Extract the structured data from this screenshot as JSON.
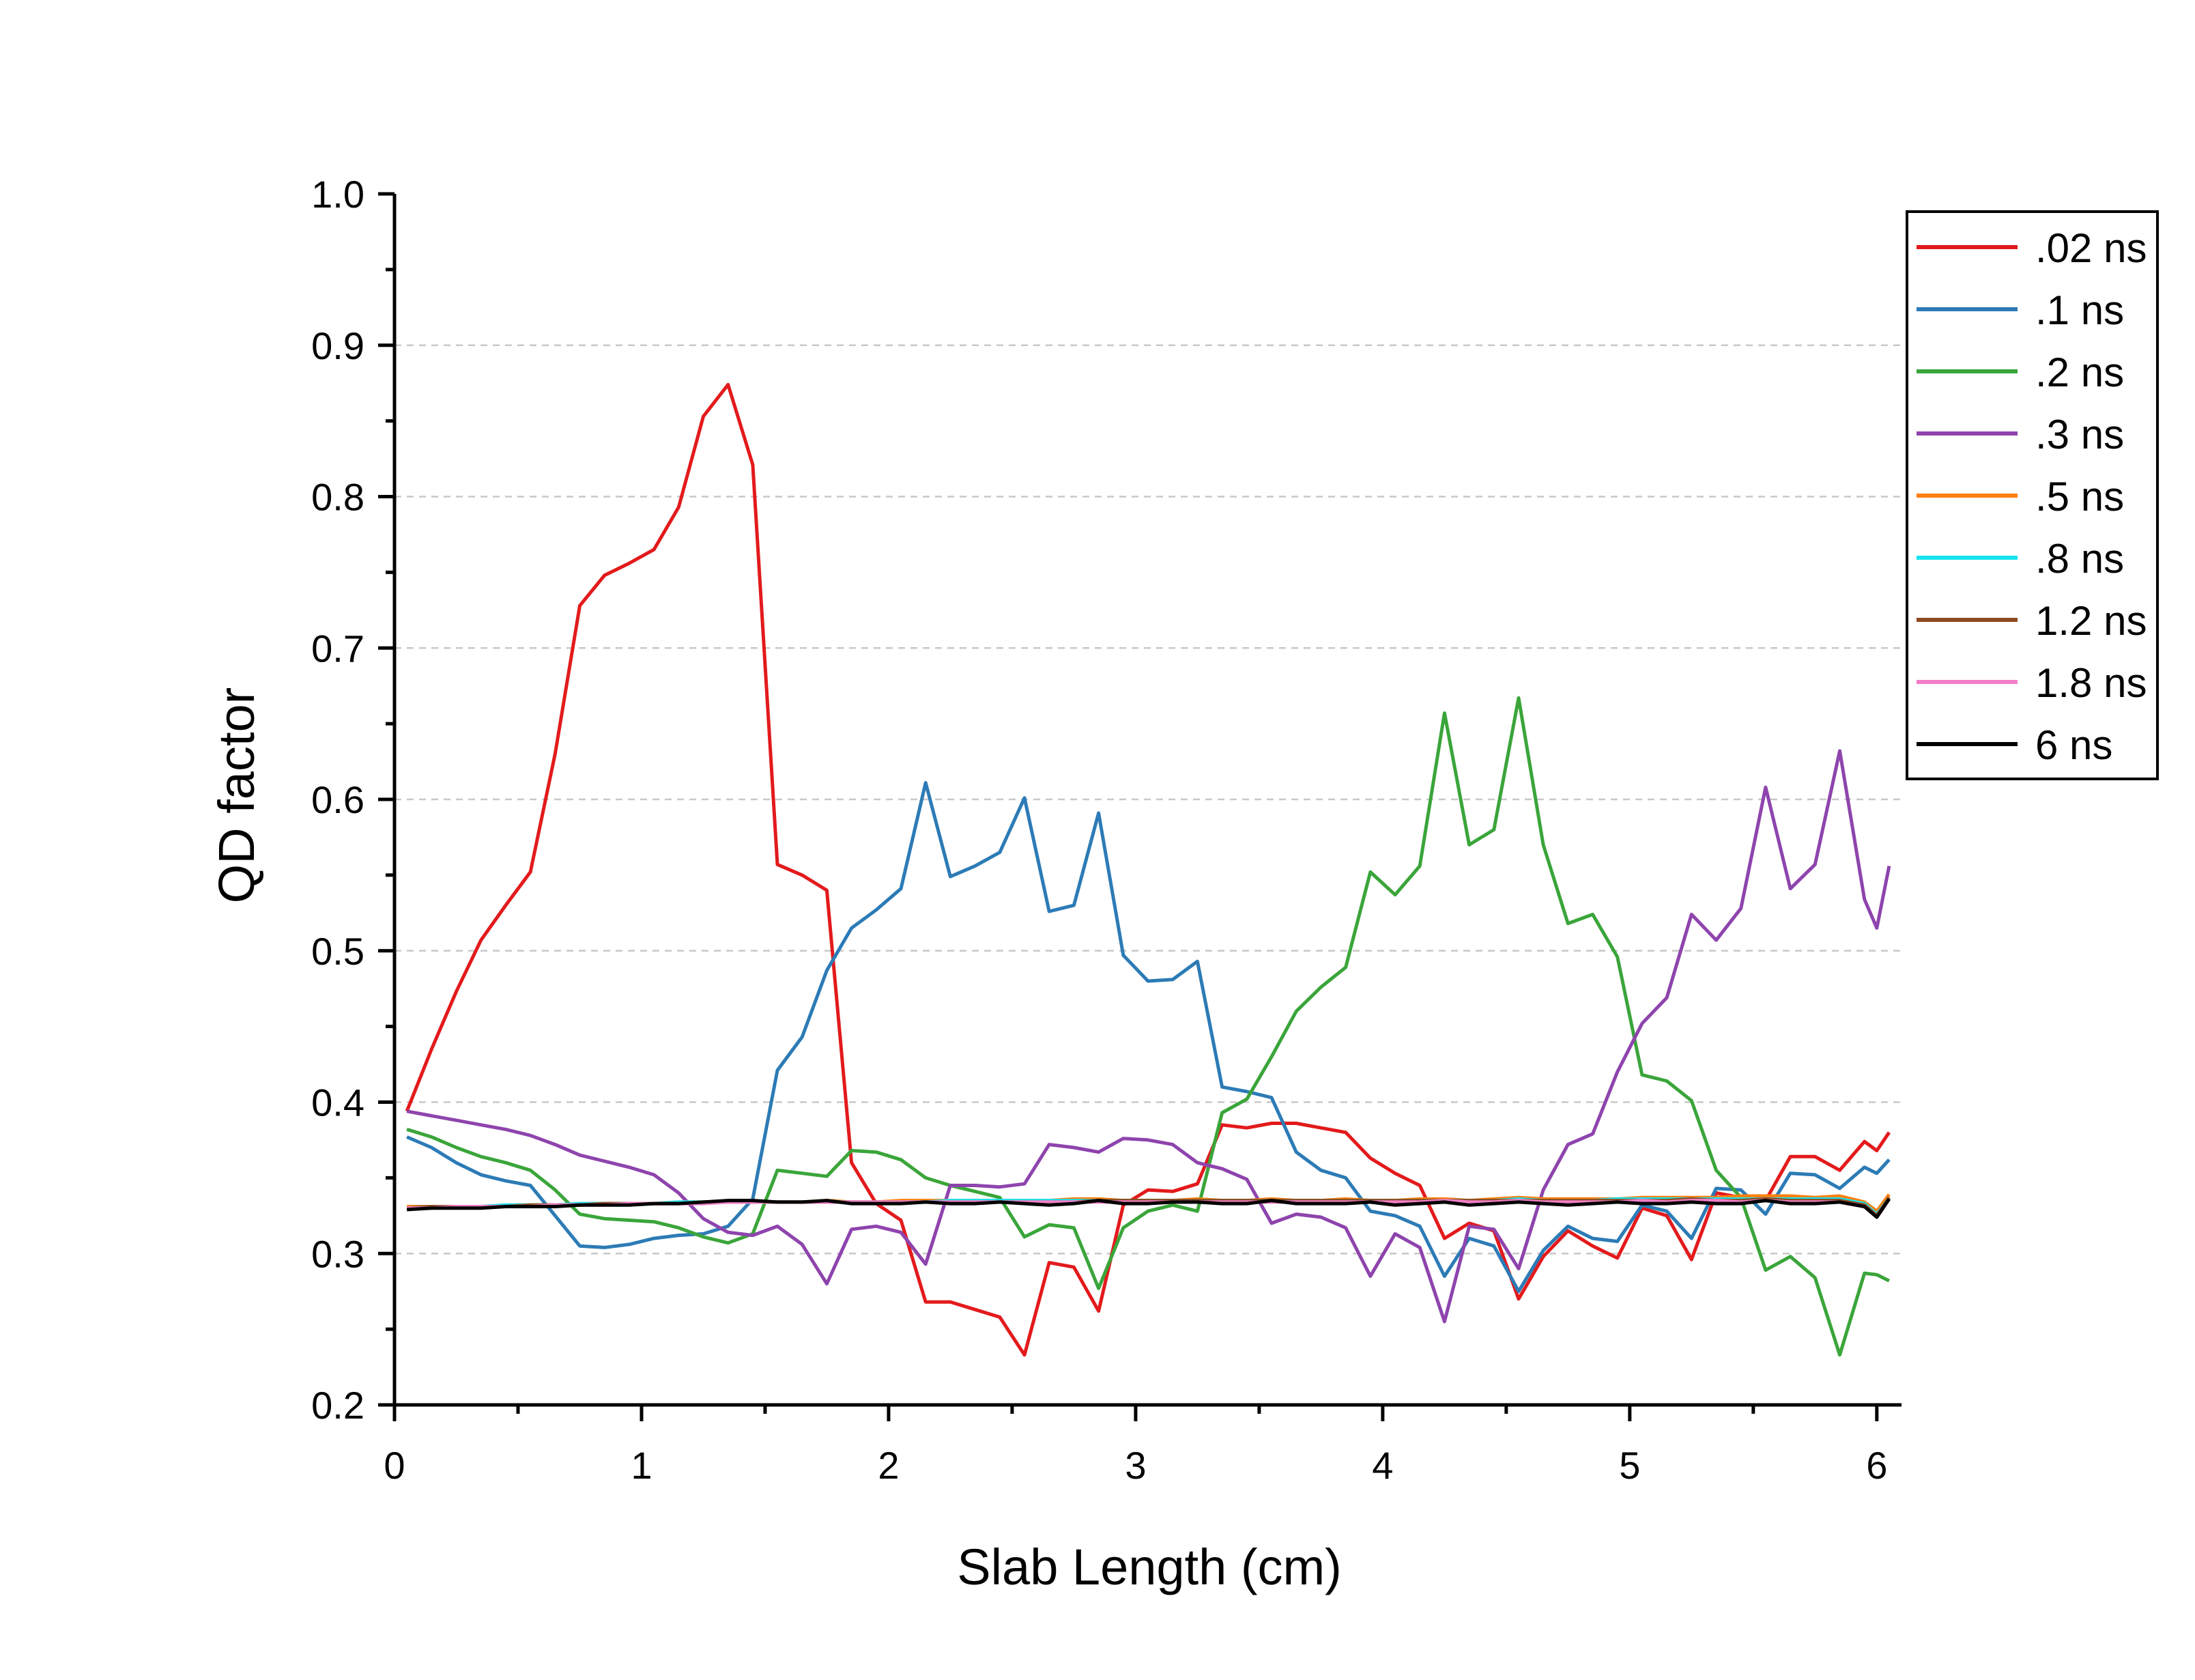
{
  "chart_data": {
    "type": "line",
    "title": "",
    "xlabel": "Slab Length (cm)",
    "ylabel": "QD factor",
    "xlim": [
      0,
      6.1
    ],
    "ylim": [
      0.2,
      1.0
    ],
    "x_ticks": [
      "0",
      "1",
      "2",
      "3",
      "4",
      "5",
      "6"
    ],
    "y_ticks": [
      "0.2",
      "0.3",
      "0.4",
      "0.5",
      "0.6",
      "0.7",
      "0.8",
      "0.9",
      "1.0"
    ],
    "grid": "horizontal dashed",
    "legend_position": "top-right",
    "x": [
      0.05,
      0.15,
      0.25,
      0.35,
      0.45,
      0.55,
      0.65,
      0.75,
      0.85,
      0.95,
      1.05,
      1.15,
      1.25,
      1.35,
      1.45,
      1.55,
      1.65,
      1.75,
      1.85,
      1.95,
      2.05,
      2.15,
      2.25,
      2.35,
      2.45,
      2.55,
      2.65,
      2.75,
      2.85,
      2.95,
      3.05,
      3.15,
      3.25,
      3.35,
      3.45,
      3.55,
      3.65,
      3.75,
      3.85,
      3.95,
      4.05,
      4.15,
      4.25,
      4.35,
      4.45,
      4.55,
      4.65,
      4.75,
      4.85,
      4.95,
      5.05,
      5.15,
      5.25,
      5.35,
      5.45,
      5.55,
      5.65,
      5.75,
      5.85,
      5.95,
      6.0,
      6.05
    ],
    "series": [
      {
        "name": ".02 ns",
        "color": "#e31a1c",
        "values": [
          0.394,
          0.435,
          0.473,
          0.507,
          0.53,
          0.552,
          0.63,
          0.728,
          0.748,
          0.756,
          0.765,
          0.793,
          0.853,
          0.874,
          0.821,
          0.557,
          0.55,
          0.54,
          0.36,
          0.333,
          0.322,
          0.268,
          0.268,
          0.263,
          0.258,
          0.233,
          0.294,
          0.291,
          0.262,
          0.332,
          0.342,
          0.341,
          0.346,
          0.385,
          0.383,
          0.386,
          0.386,
          0.383,
          0.38,
          0.363,
          0.353,
          0.345,
          0.31,
          0.32,
          0.315,
          0.27,
          0.298,
          0.315,
          0.305,
          0.297,
          0.33,
          0.325,
          0.296,
          0.34,
          0.337,
          0.335,
          0.364,
          0.364,
          0.355,
          0.374,
          0.368,
          0.38
        ]
      },
      {
        "name": ".1 ns",
        "color": "#2c7bb6",
        "values": [
          0.377,
          0.37,
          0.36,
          0.352,
          0.348,
          0.345,
          0.325,
          0.305,
          0.304,
          0.306,
          0.31,
          0.312,
          0.313,
          0.318,
          0.336,
          0.421,
          0.443,
          0.487,
          0.515,
          0.527,
          0.541,
          0.611,
          0.549,
          0.556,
          0.565,
          0.601,
          0.526,
          0.53,
          0.591,
          0.497,
          0.48,
          0.481,
          0.493,
          0.41,
          0.407,
          0.403,
          0.367,
          0.355,
          0.35,
          0.328,
          0.325,
          0.318,
          0.285,
          0.31,
          0.305,
          0.275,
          0.302,
          0.318,
          0.31,
          0.308,
          0.332,
          0.328,
          0.31,
          0.343,
          0.342,
          0.326,
          0.353,
          0.352,
          0.343,
          0.357,
          0.353,
          0.362
        ]
      },
      {
        "name": ".2 ns",
        "color": "#3aa53a",
        "values": [
          0.382,
          0.377,
          0.37,
          0.364,
          0.36,
          0.355,
          0.342,
          0.326,
          0.323,
          0.322,
          0.321,
          0.317,
          0.311,
          0.307,
          0.313,
          0.355,
          0.353,
          0.351,
          0.368,
          0.367,
          0.362,
          0.35,
          0.345,
          0.341,
          0.337,
          0.311,
          0.319,
          0.317,
          0.277,
          0.317,
          0.328,
          0.332,
          0.328,
          0.393,
          0.402,
          0.43,
          0.46,
          0.476,
          0.489,
          0.552,
          0.537,
          0.556,
          0.657,
          0.57,
          0.58,
          0.667,
          0.57,
          0.518,
          0.524,
          0.496,
          0.418,
          0.414,
          0.401,
          0.355,
          0.337,
          0.289,
          0.298,
          0.284,
          0.233,
          0.287,
          0.286,
          0.282
        ]
      },
      {
        "name": ".3 ns",
        "color": "#8e44ad",
        "values": [
          0.394,
          0.391,
          0.388,
          0.385,
          0.382,
          0.378,
          0.372,
          0.365,
          0.361,
          0.357,
          0.352,
          0.34,
          0.323,
          0.314,
          0.312,
          0.318,
          0.306,
          0.28,
          0.316,
          0.318,
          0.314,
          0.293,
          0.345,
          0.345,
          0.344,
          0.346,
          0.372,
          0.37,
          0.367,
          0.376,
          0.375,
          0.372,
          0.36,
          0.356,
          0.349,
          0.32,
          0.326,
          0.324,
          0.317,
          0.285,
          0.313,
          0.304,
          0.255,
          0.318,
          0.316,
          0.29,
          0.342,
          0.372,
          0.379,
          0.42,
          0.452,
          0.469,
          0.524,
          0.507,
          0.528,
          0.608,
          0.541,
          0.557,
          0.632,
          0.534,
          0.515,
          0.556
        ]
      },
      {
        "name": ".5 ns",
        "color": "#ff7f0e",
        "values": [
          0.331,
          0.331,
          0.331,
          0.331,
          0.332,
          0.332,
          0.332,
          0.333,
          0.333,
          0.333,
          0.333,
          0.334,
          0.334,
          0.334,
          0.334,
          0.334,
          0.334,
          0.335,
          0.334,
          0.334,
          0.335,
          0.335,
          0.335,
          0.335,
          0.335,
          0.335,
          0.335,
          0.336,
          0.336,
          0.335,
          0.335,
          0.335,
          0.336,
          0.335,
          0.335,
          0.336,
          0.335,
          0.335,
          0.336,
          0.335,
          0.335,
          0.336,
          0.336,
          0.335,
          0.336,
          0.337,
          0.336,
          0.336,
          0.336,
          0.336,
          0.337,
          0.337,
          0.337,
          0.337,
          0.338,
          0.338,
          0.338,
          0.337,
          0.338,
          0.334,
          0.328,
          0.339
        ]
      },
      {
        "name": ".8 ns",
        "color": "#17e3f0",
        "values": [
          0.33,
          0.331,
          0.331,
          0.331,
          0.332,
          0.332,
          0.332,
          0.333,
          0.333,
          0.333,
          0.333,
          0.334,
          0.334,
          0.334,
          0.334,
          0.334,
          0.334,
          0.334,
          0.334,
          0.334,
          0.334,
          0.334,
          0.335,
          0.335,
          0.335,
          0.335,
          0.335,
          0.335,
          0.335,
          0.335,
          0.335,
          0.335,
          0.335,
          0.335,
          0.335,
          0.335,
          0.335,
          0.335,
          0.335,
          0.335,
          0.335,
          0.335,
          0.335,
          0.335,
          0.335,
          0.336,
          0.335,
          0.335,
          0.335,
          0.336,
          0.336,
          0.336,
          0.336,
          0.336,
          0.336,
          0.336,
          0.336,
          0.336,
          0.336,
          0.333,
          0.326,
          0.337
        ]
      },
      {
        "name": "1.2 ns",
        "color": "#8c4a1e",
        "values": [
          0.33,
          0.331,
          0.331,
          0.331,
          0.331,
          0.332,
          0.332,
          0.332,
          0.333,
          0.333,
          0.333,
          0.333,
          0.334,
          0.334,
          0.334,
          0.334,
          0.334,
          0.334,
          0.334,
          0.334,
          0.334,
          0.334,
          0.334,
          0.334,
          0.334,
          0.334,
          0.334,
          0.334,
          0.335,
          0.335,
          0.335,
          0.335,
          0.335,
          0.335,
          0.335,
          0.335,
          0.335,
          0.335,
          0.335,
          0.335,
          0.335,
          0.335,
          0.335,
          0.335,
          0.335,
          0.335,
          0.335,
          0.335,
          0.335,
          0.335,
          0.335,
          0.335,
          0.336,
          0.335,
          0.335,
          0.336,
          0.335,
          0.335,
          0.335,
          0.332,
          0.325,
          0.337
        ]
      },
      {
        "name": "1.8 ns",
        "color": "#f27ec8",
        "values": [
          0.33,
          0.33,
          0.331,
          0.331,
          0.331,
          0.331,
          0.332,
          0.332,
          0.332,
          0.333,
          0.333,
          0.333,
          0.333,
          0.334,
          0.334,
          0.334,
          0.334,
          0.334,
          0.334,
          0.334,
          0.334,
          0.334,
          0.334,
          0.334,
          0.334,
          0.334,
          0.334,
          0.334,
          0.334,
          0.334,
          0.334,
          0.334,
          0.334,
          0.334,
          0.334,
          0.334,
          0.334,
          0.334,
          0.334,
          0.334,
          0.334,
          0.334,
          0.335,
          0.334,
          0.334,
          0.335,
          0.334,
          0.334,
          0.334,
          0.334,
          0.335,
          0.334,
          0.335,
          0.335,
          0.334,
          0.335,
          0.334,
          0.334,
          0.334,
          0.331,
          0.324,
          0.336
        ]
      },
      {
        "name": "6 ns",
        "color": "#000000",
        "values": [
          0.329,
          0.33,
          0.33,
          0.33,
          0.331,
          0.331,
          0.331,
          0.332,
          0.332,
          0.332,
          0.333,
          0.333,
          0.334,
          0.335,
          0.335,
          0.334,
          0.334,
          0.335,
          0.333,
          0.333,
          0.333,
          0.334,
          0.333,
          0.333,
          0.334,
          0.333,
          0.332,
          0.333,
          0.335,
          0.333,
          0.333,
          0.334,
          0.334,
          0.333,
          0.333,
          0.335,
          0.333,
          0.333,
          0.333,
          0.334,
          0.332,
          0.333,
          0.334,
          0.332,
          0.333,
          0.334,
          0.333,
          0.332,
          0.333,
          0.334,
          0.333,
          0.333,
          0.334,
          0.333,
          0.333,
          0.335,
          0.333,
          0.333,
          0.334,
          0.331,
          0.324,
          0.336
        ]
      }
    ]
  }
}
